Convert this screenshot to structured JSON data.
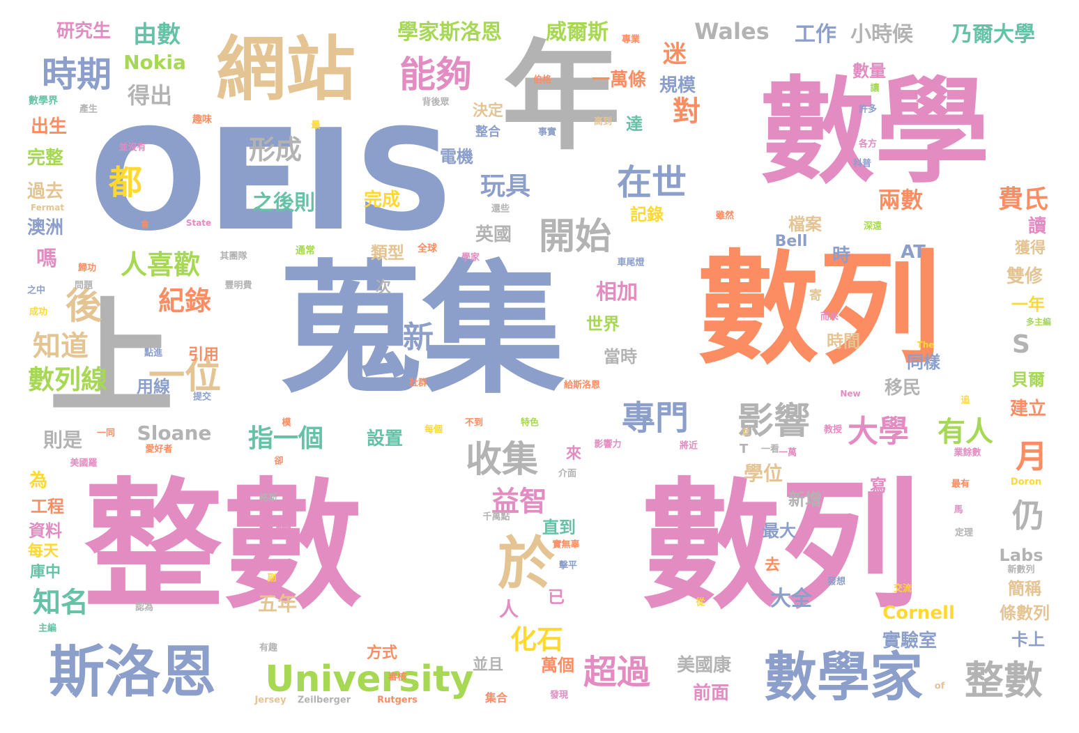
{
  "palette": {
    "blue": "#8c9fcb",
    "pink": "#e38cc2",
    "orange": "#fc8d62",
    "gray": "#b3b3b3",
    "tan": "#e5c494",
    "green": "#a6d854",
    "yellow": "#ffd92f",
    "teal": "#66c2a5"
  },
  "words": [
    "數學",
    "數列",
    "整數",
    "數列",
    "蒐集",
    "OEIS",
    "年",
    "上",
    "網站",
    "斯洛恩",
    "數學家",
    "University",
    "整數",
    "於",
    "能夠",
    "時期",
    "在世",
    "開始",
    "影響",
    "收集",
    "專門",
    "大學",
    "有人",
    "對",
    "後",
    "一位",
    "新",
    "形成",
    "玩具",
    "都",
    "知道",
    "知名",
    "超過",
    "化石",
    "益智",
    "指一個",
    "人喜歡",
    "紀錄",
    "數列線",
    "月",
    "仍",
    "費氏",
    "兩數",
    "S",
    "由數",
    "研究生",
    "學家斯洛恩",
    "威爾斯",
    "Wales",
    "工作",
    "小時候",
    "乃爾大學",
    "Nokia",
    "得出",
    "迷",
    "一萬條",
    "規模",
    "數量",
    "出生",
    "完整",
    "過去",
    "澳洲",
    "嗎",
    "之後則",
    "完成",
    "類型",
    "英國",
    "記錄",
    "電機",
    "決定",
    "達",
    "檔案",
    "Bell",
    "AT",
    "時",
    "相加",
    "世界",
    "當時",
    "時間",
    "同樣",
    "移民",
    "貝爾",
    "建立",
    "雙修",
    "一年",
    "讀",
    "獲得",
    "用線",
    "引用",
    "Sloane",
    "則是",
    "設置",
    "人",
    "學位",
    "新增",
    "最大",
    "大全",
    "五年",
    "已",
    "Cornell",
    "實驗室",
    "卡上",
    "條數列",
    "簡稱",
    "工程",
    "資料",
    "每天",
    "庫中",
    "為",
    "持續",
    "直到",
    "萬個",
    "前面",
    "美國康",
    "並且",
    "方式",
    "去",
    "寫",
    "Labs",
    "來",
    "數學界",
    "產生",
    "趣味",
    "並沒有",
    "背後眾",
    "伯格",
    "專業",
    "事實",
    "高到",
    "整合",
    "讓",
    "許多",
    "各方",
    "科普",
    "Fermat",
    "State",
    "還些",
    "雖然",
    "深遠",
    "其團隊",
    "通常",
    "全球",
    "學家",
    "車尾燈",
    "問題",
    "歸功",
    "之中",
    "成功",
    "豐明費",
    "點進",
    "提交",
    "社群",
    "給斯洛恩",
    "而來",
    "寄",
    "多主編",
    "The",
    "New",
    "追",
    "教授",
    "每個",
    "不到",
    "特色",
    "模",
    "一同",
    "愛好者",
    "影響力",
    "將近",
    "美國羅",
    "卻",
    "介面",
    "一看",
    "業餘數",
    "Doron",
    "格斯",
    "千萬點",
    "實無辜",
    "擊平",
    "副",
    "發想",
    "交流",
    "新數列",
    "定理",
    "馬",
    "最有",
    "認為",
    "主編",
    "有趣",
    "審核",
    "從",
    "集合",
    "發現",
    "Rutgers",
    "of",
    "Jersey",
    "Zeilberger",
    "會",
    "T",
    "最",
    "一萬",
    "次",
    "並"
  ]
}
